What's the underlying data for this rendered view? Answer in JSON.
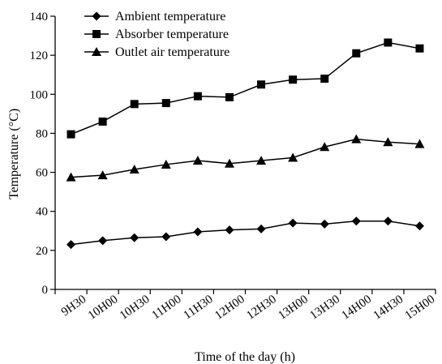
{
  "chart_data": {
    "type": "line",
    "title": "",
    "xlabel": "Time of the day (h)",
    "ylabel": "Temperature (°C)",
    "ylim": [
      0,
      140
    ],
    "yticks": [
      0,
      20,
      40,
      60,
      80,
      100,
      120,
      140
    ],
    "x_tick_labels": [
      "9H30",
      "10H00",
      "10H30",
      "11H00",
      "11H30",
      "12H00",
      "12H30",
      "13H00",
      "13H30",
      "14H00",
      "14H30",
      "15H00"
    ],
    "x": [
      "9H30",
      "10H00",
      "10H30",
      "11H00",
      "11H30",
      "12H00",
      "12H30",
      "13H00",
      "13H30",
      "14H00",
      "14H30",
      "15H00"
    ],
    "grid": false,
    "legend_position": "top-left",
    "series": [
      {
        "name": "Ambient temperature",
        "marker": "diamond",
        "values": [
          23,
          25,
          26.5,
          27,
          29.5,
          30.5,
          31,
          34,
          33.5,
          35,
          35,
          32.5
        ]
      },
      {
        "name": "Absorber temperature",
        "marker": "square",
        "values": [
          79.5,
          86,
          95,
          95.5,
          99,
          98.5,
          105,
          107.5,
          108,
          121,
          126.5,
          123.5
        ]
      },
      {
        "name": "Outlet air temperature",
        "marker": "triangle",
        "values": [
          57.5,
          58.5,
          61.5,
          64,
          66,
          64.5,
          66,
          67.5,
          73,
          77,
          75.5,
          74.5
        ]
      }
    ]
  }
}
